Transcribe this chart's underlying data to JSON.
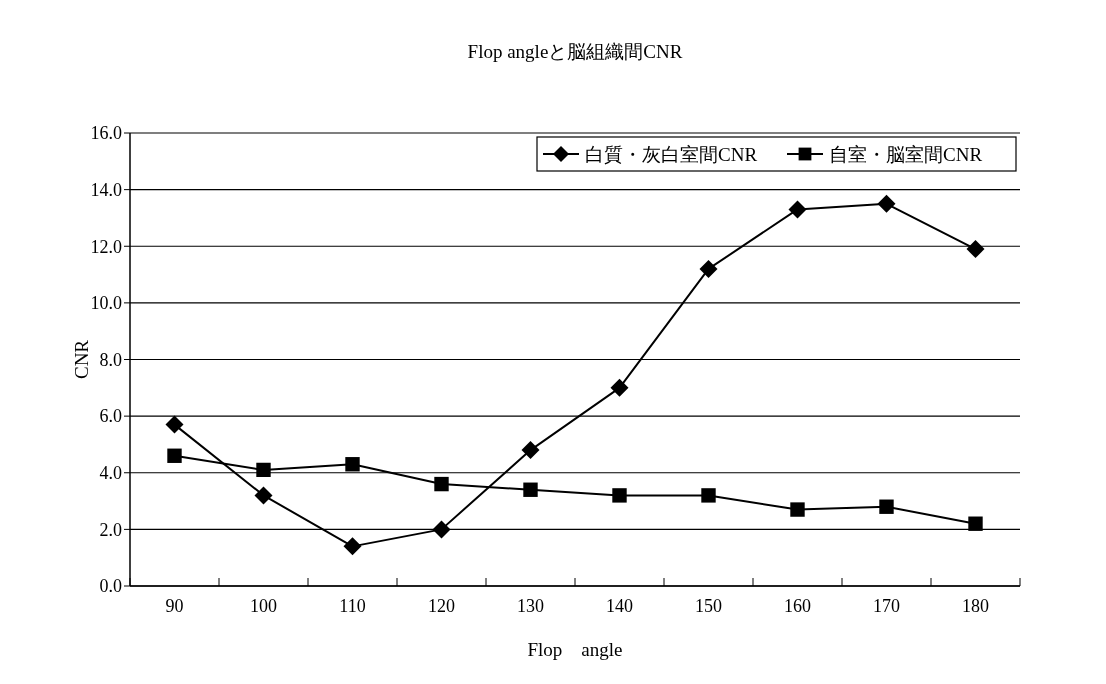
{
  "chart_data": {
    "type": "line",
    "title": "Flop angleと脳組織間CNR",
    "xlabel": "Flop　angle",
    "ylabel": "CNR",
    "categories": [
      "90",
      "100",
      "110",
      "120",
      "130",
      "140",
      "150",
      "160",
      "170",
      "180"
    ],
    "series": [
      {
        "name": "白質・灰白室間CNR",
        "color": "#000000",
        "marker": "diamond",
        "values": [
          5.7,
          3.2,
          1.4,
          2.0,
          4.8,
          7.0,
          11.2,
          13.3,
          13.5,
          11.9
        ]
      },
      {
        "name": "自室・脳室間CNR",
        "color": "#000000",
        "marker": "square",
        "values": [
          4.6,
          4.1,
          4.3,
          3.6,
          3.4,
          3.2,
          3.2,
          2.7,
          2.8,
          2.2
        ]
      }
    ],
    "ylim": [
      0,
      16
    ],
    "yticks": [
      {
        "value": 0,
        "label": "0.0"
      },
      {
        "value": 2,
        "label": "2.0"
      },
      {
        "value": 4,
        "label": "4.0"
      },
      {
        "value": 6,
        "label": "6.0"
      },
      {
        "value": 8,
        "label": "8.0"
      },
      {
        "value": 10,
        "label": "10.0"
      },
      {
        "value": 12,
        "label": "12.0"
      },
      {
        "value": 14,
        "label": "14.0"
      },
      {
        "value": 16,
        "label": "16.0"
      }
    ],
    "grid": "y",
    "legend": "top right",
    "line_style": "solid"
  }
}
